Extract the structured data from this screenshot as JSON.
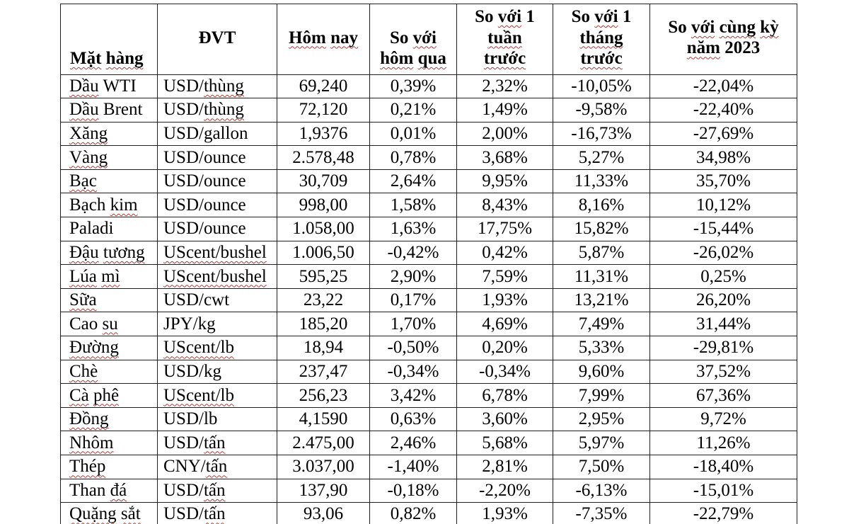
{
  "colors": {
    "background": "#ffffff",
    "text": "#000000",
    "border": "#1f1f1f",
    "spellcheck_squiggle": "#b03a36"
  },
  "table": {
    "columns": [
      {
        "label": "Mặt hàng",
        "sq": [
          "Mặt",
          "hàng"
        ]
      },
      {
        "label": "ĐVT",
        "sq": []
      },
      {
        "label": "Hôm nay",
        "sq": [
          "Hôm",
          "nay"
        ]
      },
      {
        "label": "So với\nhôm qua",
        "sq": [
          "với",
          "hôm",
          "qua"
        ]
      },
      {
        "label": "So với 1\ntuần\ntrước",
        "sq": [
          "với",
          "tuần",
          "trước"
        ]
      },
      {
        "label": "So với 1\ntháng\ntrước",
        "sq": [
          "với",
          "tháng",
          "trước"
        ]
      },
      {
        "label": "So với cùng kỳ\nnăm 2023",
        "sq": [
          "với",
          "cùng",
          "kỳ",
          "năm"
        ]
      }
    ],
    "rows": [
      {
        "name": "Dầu WTI",
        "name_sq": [
          "Dầu"
        ],
        "unit": "USD/thùng",
        "unit_sq": [
          "thùng"
        ],
        "today": "69,240",
        "vs_yesterday": "0,39%",
        "vs_week": "2,32%",
        "vs_month": "-10,05%",
        "vs_2023": "-22,04%"
      },
      {
        "name": "Dầu Brent",
        "name_sq": [
          "Dầu"
        ],
        "unit": "USD/thùng",
        "unit_sq": [
          "thùng"
        ],
        "today": "72,120",
        "vs_yesterday": "0,21%",
        "vs_week": "1,49%",
        "vs_month": "-9,58%",
        "vs_2023": "-22,40%"
      },
      {
        "name": "Xăng",
        "name_sq": [
          "Xăng"
        ],
        "unit": "USD/gallon",
        "unit_sq": [],
        "today": "1,9376",
        "vs_yesterday": "0,01%",
        "vs_week": "2,00%",
        "vs_month": "-16,73%",
        "vs_2023": "-27,69%"
      },
      {
        "name": "Vàng",
        "name_sq": [
          "Vàng"
        ],
        "unit": "USD/ounce",
        "unit_sq": [],
        "today": "2.578,48",
        "vs_yesterday": "0,78%",
        "vs_week": "3,68%",
        "vs_month": "5,27%",
        "vs_2023": "34,98%"
      },
      {
        "name": "Bạc",
        "name_sq": [
          "Bạc"
        ],
        "unit": "USD/ounce",
        "unit_sq": [],
        "today": "30,709",
        "vs_yesterday": "2,64%",
        "vs_week": "9,95%",
        "vs_month": "11,33%",
        "vs_2023": "35,70%"
      },
      {
        "name": "Bạch kim",
        "name_sq": [
          "kim"
        ],
        "unit": "USD/ounce",
        "unit_sq": [],
        "today": "998,00",
        "vs_yesterday": "1,58%",
        "vs_week": "8,43%",
        "vs_month": "8,16%",
        "vs_2023": "10,12%"
      },
      {
        "name": "Paladi",
        "name_sq": [],
        "unit": "USD/ounce",
        "unit_sq": [],
        "today": "1.058,00",
        "vs_yesterday": "1,63%",
        "vs_week": "17,75%",
        "vs_month": "15,82%",
        "vs_2023": "-15,44%"
      },
      {
        "name": "Đậu tương",
        "name_sq": [
          "Đậu",
          "tương"
        ],
        "unit": "UScent/bushel",
        "unit_sq": [
          "UScent/bushel"
        ],
        "today": "1.006,50",
        "vs_yesterday": "-0,42%",
        "vs_week": "0,42%",
        "vs_month": "5,87%",
        "vs_2023": "-26,02%"
      },
      {
        "name": "Lúa mì",
        "name_sq": [
          "Lúa",
          "mì"
        ],
        "unit": "UScent/bushel",
        "unit_sq": [
          "UScent/bushel"
        ],
        "today": "595,25",
        "vs_yesterday": "2,90%",
        "vs_week": "7,59%",
        "vs_month": "11,31%",
        "vs_2023": "0,25%"
      },
      {
        "name": "Sữa",
        "name_sq": [
          "Sữa"
        ],
        "unit": "USD/cwt",
        "unit_sq": [],
        "today": "23,22",
        "vs_yesterday": "0,17%",
        "vs_week": "1,93%",
        "vs_month": "13,21%",
        "vs_2023": "26,20%"
      },
      {
        "name": "Cao su",
        "name_sq": [
          "su"
        ],
        "unit": "JPY/kg",
        "unit_sq": [],
        "today": "185,20",
        "vs_yesterday": "1,70%",
        "vs_week": "4,69%",
        "vs_month": "7,49%",
        "vs_2023": "31,44%"
      },
      {
        "name": "Đường",
        "name_sq": [
          "Đường"
        ],
        "unit": "UScent/lb",
        "unit_sq": [
          "UScent/lb"
        ],
        "today": "18,94",
        "vs_yesterday": "-0,50%",
        "vs_week": "0,20%",
        "vs_month": "5,33%",
        "vs_2023": "-29,81%"
      },
      {
        "name": "Chè",
        "name_sq": [
          "Chè"
        ],
        "unit": "USD/kg",
        "unit_sq": [],
        "today": "237,47",
        "vs_yesterday": "-0,34%",
        "vs_week": "-0,34%",
        "vs_month": "9,60%",
        "vs_2023": "37,52%"
      },
      {
        "name": "Cà phê",
        "name_sq": [
          "Cà",
          "phê"
        ],
        "unit": "UScent/lb",
        "unit_sq": [
          "UScent/lb"
        ],
        "today": "256,23",
        "vs_yesterday": "3,42%",
        "vs_week": "6,78%",
        "vs_month": "7,99%",
        "vs_2023": "67,36%"
      },
      {
        "name": "Đồng",
        "name_sq": [
          "Đồng"
        ],
        "unit": "USD/lb",
        "unit_sq": [],
        "today": "4,1590",
        "vs_yesterday": "0,63%",
        "vs_week": "3,60%",
        "vs_month": "2,95%",
        "vs_2023": "9,72%"
      },
      {
        "name": "Nhôm",
        "name_sq": [
          "Nhôm"
        ],
        "unit": "USD/tấn",
        "unit_sq": [
          "tấn"
        ],
        "today": "2.475,00",
        "vs_yesterday": "2,46%",
        "vs_week": "5,68%",
        "vs_month": "5,97%",
        "vs_2023": "11,26%"
      },
      {
        "name": "Thép",
        "name_sq": [
          "Thép"
        ],
        "unit": "CNY/tấn",
        "unit_sq": [
          "tấn"
        ],
        "today": "3.037,00",
        "vs_yesterday": "-1,40%",
        "vs_week": "2,81%",
        "vs_month": "7,50%",
        "vs_2023": "-18,40%"
      },
      {
        "name": "Than đá",
        "name_sq": [
          "đá"
        ],
        "unit": "USD/tấn",
        "unit_sq": [
          "tấn"
        ],
        "today": "137,90",
        "vs_yesterday": "-0,18%",
        "vs_week": "-2,20%",
        "vs_month": "-6,13%",
        "vs_2023": "-15,01%"
      },
      {
        "name": "Quặng sắt",
        "name_sq": [
          "Quặng",
          "sắt"
        ],
        "unit": "USD/tấn",
        "unit_sq": [
          "tấn"
        ],
        "today": "93,06",
        "vs_yesterday": "0,82%",
        "vs_week": "1,93%",
        "vs_month": "-7,35%",
        "vs_2023": "-22,79%"
      }
    ]
  }
}
